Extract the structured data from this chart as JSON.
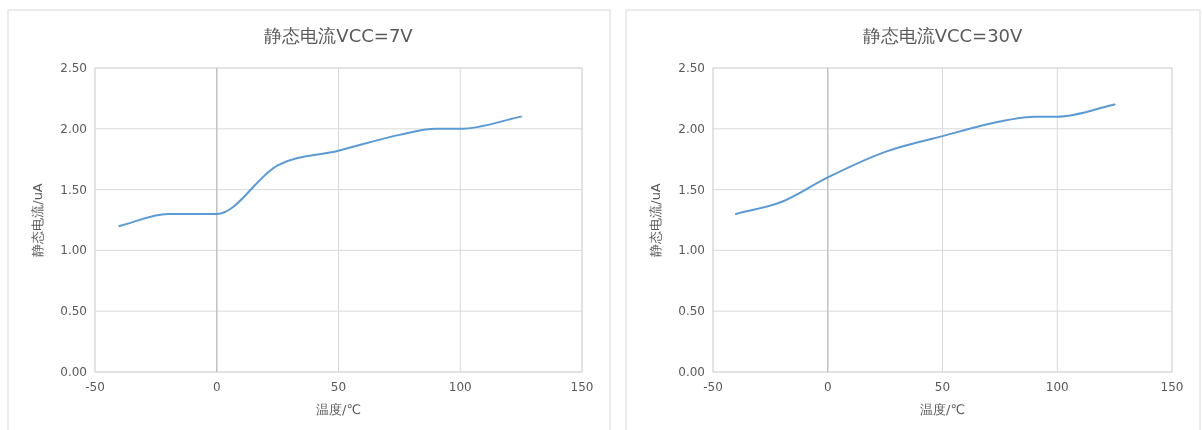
{
  "chart_data": [
    {
      "type": "line",
      "title": "静态电流VCC=7V",
      "xlabel": "温度/℃",
      "ylabel": "静态电流/uA",
      "x": [
        -40,
        -20,
        0,
        25,
        50,
        75,
        90,
        100,
        125
      ],
      "series": [
        {
          "color": "#5b9bd5",
          "values": [
            1.2,
            1.3,
            1.3,
            1.7,
            1.82,
            1.95,
            2.0,
            2.0,
            2.1
          ]
        }
      ],
      "xlim": [
        -50,
        150
      ],
      "xticks": [
        -50,
        0,
        50,
        100,
        150
      ],
      "ylim": [
        0,
        2.5
      ],
      "yticks": [
        {
          "value": 0,
          "label": "0.00"
        },
        {
          "value": 0.5,
          "label": "0.50"
        },
        {
          "value": 1,
          "label": "1.00"
        },
        {
          "value": 1.5,
          "label": "1.50"
        },
        {
          "value": 2,
          "label": "2.00"
        },
        {
          "value": 2.5,
          "label": "2.50"
        }
      ],
      "grid": true,
      "ref_lines": [
        {
          "axis": "x",
          "value": 0,
          "color": "#bfbfbf"
        }
      ]
    },
    {
      "type": "line",
      "title": "静态电流VCC=30V",
      "xlabel": "温度/℃",
      "ylabel": "静态电流/uA",
      "x": [
        -40,
        -20,
        0,
        25,
        50,
        75,
        90,
        100,
        125
      ],
      "series": [
        {
          "color": "#5b9bd5",
          "values": [
            1.3,
            1.4,
            1.6,
            1.81,
            1.94,
            2.06,
            2.1,
            2.1,
            2.2
          ]
        }
      ],
      "xlim": [
        -50,
        150
      ],
      "xticks": [
        -50,
        0,
        50,
        100,
        150
      ],
      "ylim": [
        0,
        2.5
      ],
      "yticks": [
        {
          "value": 0,
          "label": "0.00"
        },
        {
          "value": 0.5,
          "label": "0.50"
        },
        {
          "value": 1,
          "label": "1.00"
        },
        {
          "value": 1.5,
          "label": "1.50"
        },
        {
          "value": 2,
          "label": "2.00"
        },
        {
          "value": 2.5,
          "label": "2.50"
        }
      ],
      "grid": true,
      "ref_lines": [
        {
          "axis": "x",
          "value": 0,
          "color": "#bfbfbf"
        }
      ]
    }
  ]
}
